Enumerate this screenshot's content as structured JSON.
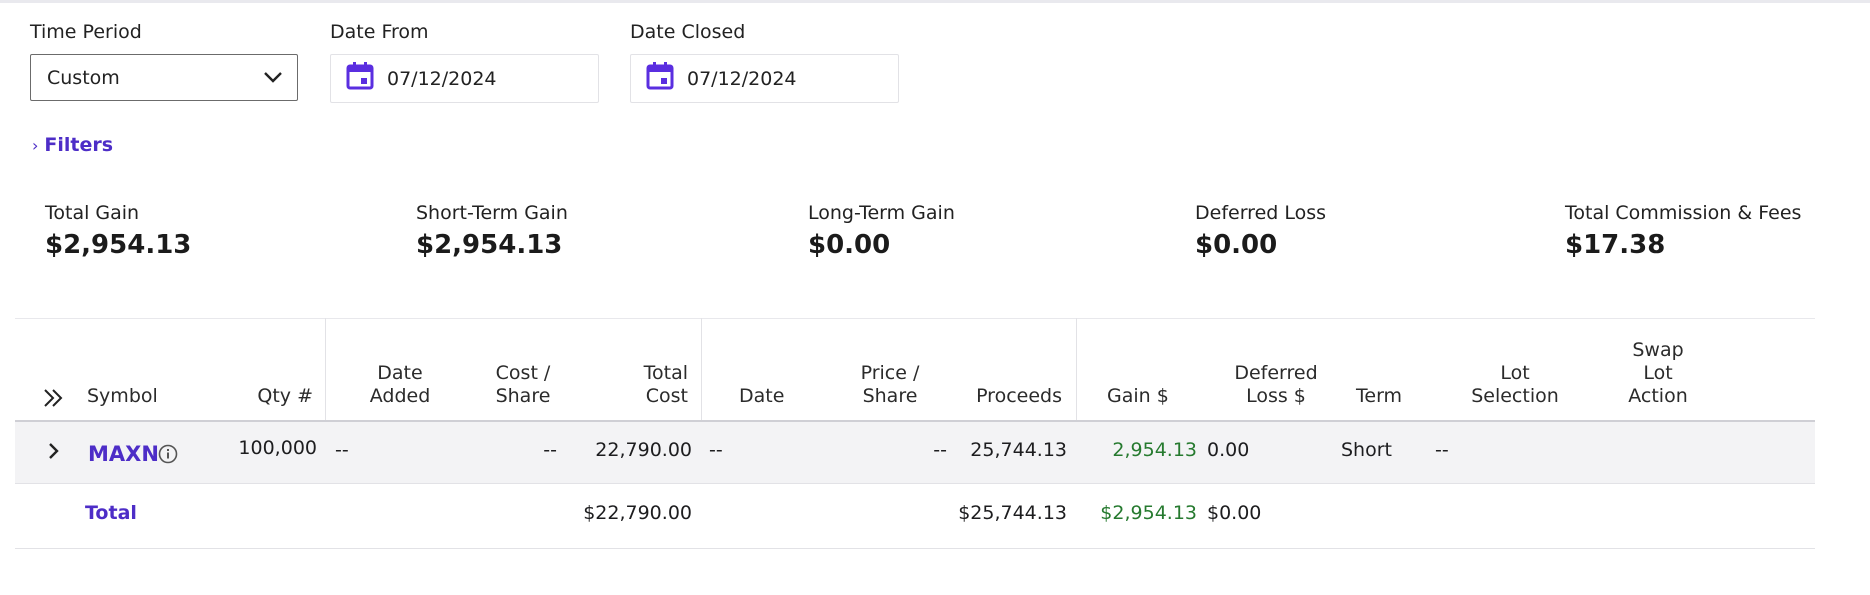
{
  "filters_panel": {
    "time_period_label": "Time Period",
    "time_period_value": "Custom",
    "date_from_label": "Date From",
    "date_from_value": "07/12/2024",
    "date_closed_label": "Date Closed",
    "date_closed_value": "07/12/2024",
    "filters_link": "Filters"
  },
  "summary": [
    {
      "title": "Total Gain",
      "value": "$2,954.13"
    },
    {
      "title": "Short-Term Gain",
      "value": "$2,954.13"
    },
    {
      "title": "Long-Term Gain",
      "value": "$0.00"
    },
    {
      "title": "Deferred Loss",
      "value": "$0.00"
    },
    {
      "title": "Total Commission & Fees",
      "value": "$17.38"
    }
  ],
  "table": {
    "headers": {
      "symbol": "Symbol",
      "qty": "Qty #",
      "date_added_1": "Date",
      "date_added_2": "Added",
      "cost_share_1": "Cost /",
      "cost_share_2": "Share",
      "total_cost_1": "Total",
      "total_cost_2": "Cost",
      "date": "Date",
      "price_share_1": "Price /",
      "price_share_2": "Share",
      "proceeds": "Proceeds",
      "gain": "Gain $",
      "deferred_1": "Deferred",
      "deferred_2": "Loss $",
      "term": "Term",
      "lot_sel_1": "Lot",
      "lot_sel_2": "Selection",
      "swap_1": "Swap",
      "swap_2": "Lot",
      "swap_3": "Action"
    },
    "row": {
      "symbol": "MAXN",
      "qty": "100,000",
      "date_added": "--",
      "cost_share": "--",
      "total_cost": "22,790.00",
      "date": "--",
      "price_share": "--",
      "proceeds": "25,744.13",
      "gain": "2,954.13",
      "deferred_loss": "0.00",
      "term": "Short",
      "lot_selection": "--"
    },
    "total": {
      "label": "Total",
      "total_cost": "$22,790.00",
      "proceeds": "$25,744.13",
      "gain": "$2,954.13",
      "deferred_loss": "$0.00"
    }
  },
  "colors": {
    "accent": "#4d2dc7",
    "gain": "#267a2f"
  }
}
